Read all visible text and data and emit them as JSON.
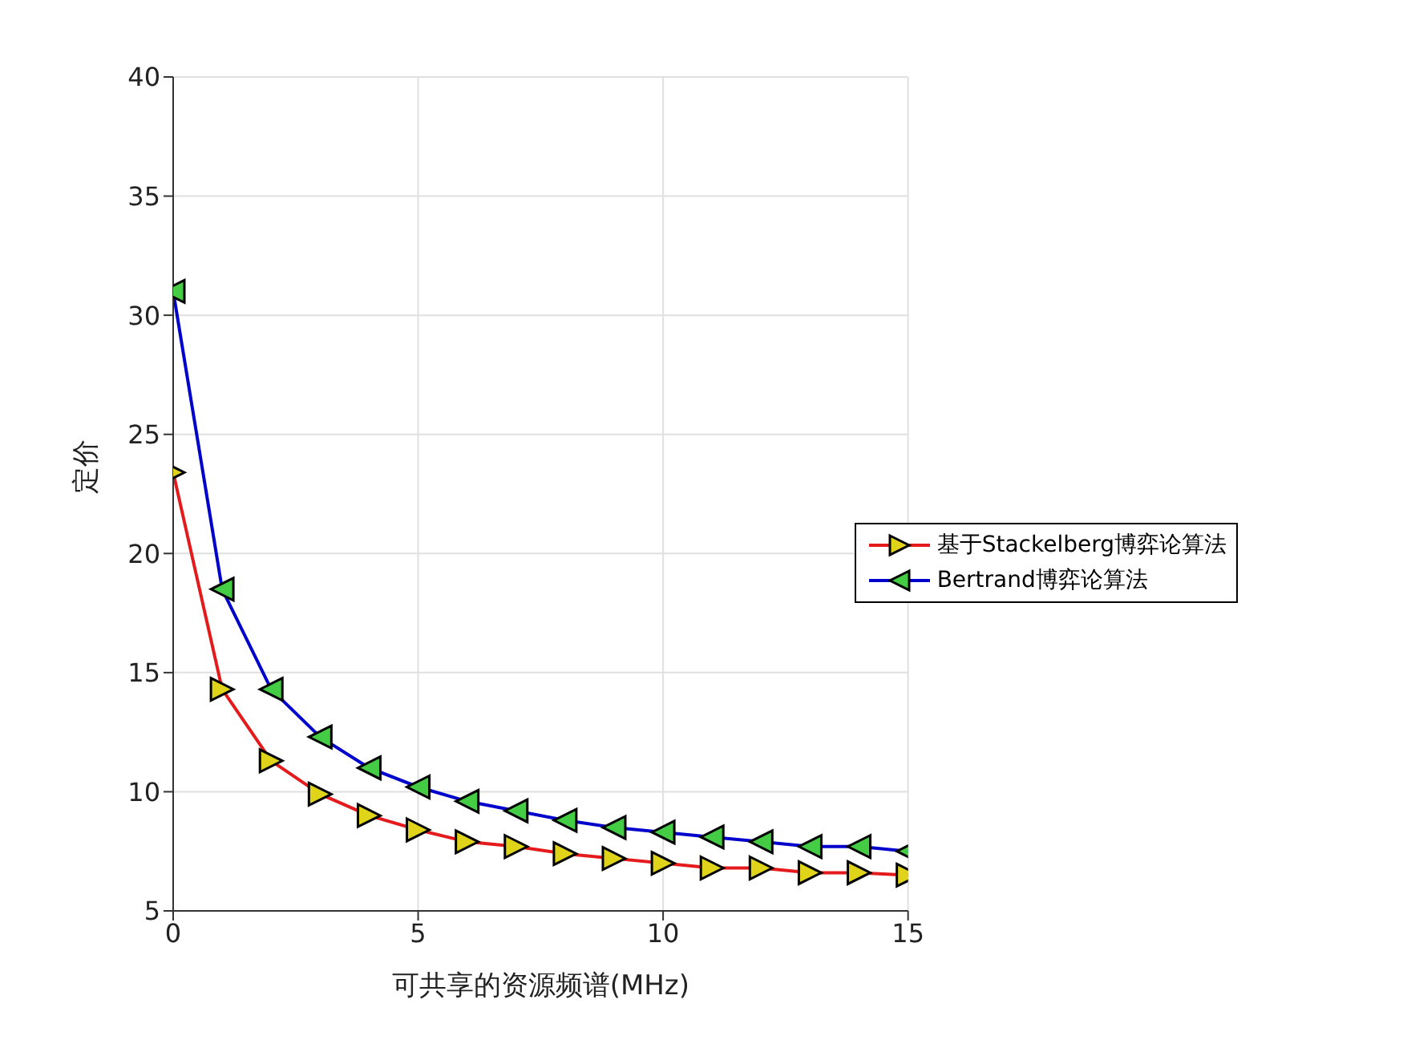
{
  "chart_data": {
    "type": "line",
    "xlabel": "可共享的资源频谱(MHz)",
    "ylabel": "定价",
    "x": [
      0,
      1,
      2,
      3,
      4,
      5,
      6,
      7,
      8,
      9,
      10,
      11,
      12,
      13,
      14,
      15
    ],
    "series": [
      {
        "name": "基于Stackelberg博弈论算法",
        "color": "#e41a1c",
        "values": [
          23.4,
          14.3,
          11.3,
          9.9,
          9.0,
          8.4,
          7.9,
          7.7,
          7.4,
          7.2,
          7.0,
          6.8,
          6.8,
          6.6,
          6.6,
          6.5
        ]
      },
      {
        "name": "Bertrand博弈论算法",
        "color": "#0000cc",
        "values": [
          31,
          18.5,
          14.3,
          12.3,
          11.0,
          10.2,
          9.6,
          9.2,
          8.8,
          8.5,
          8.3,
          8.1,
          7.9,
          7.7,
          7.7,
          7.5
        ]
      }
    ],
    "xlim": [
      0,
      15
    ],
    "xticks": [
      0,
      5,
      10,
      15
    ],
    "ylim": [
      5,
      40
    ],
    "yticks": [
      5,
      10,
      15,
      20,
      25,
      30,
      35,
      40
    ],
    "grid": true,
    "legend": "right",
    "marker": "triangle",
    "line_style": "solid"
  }
}
